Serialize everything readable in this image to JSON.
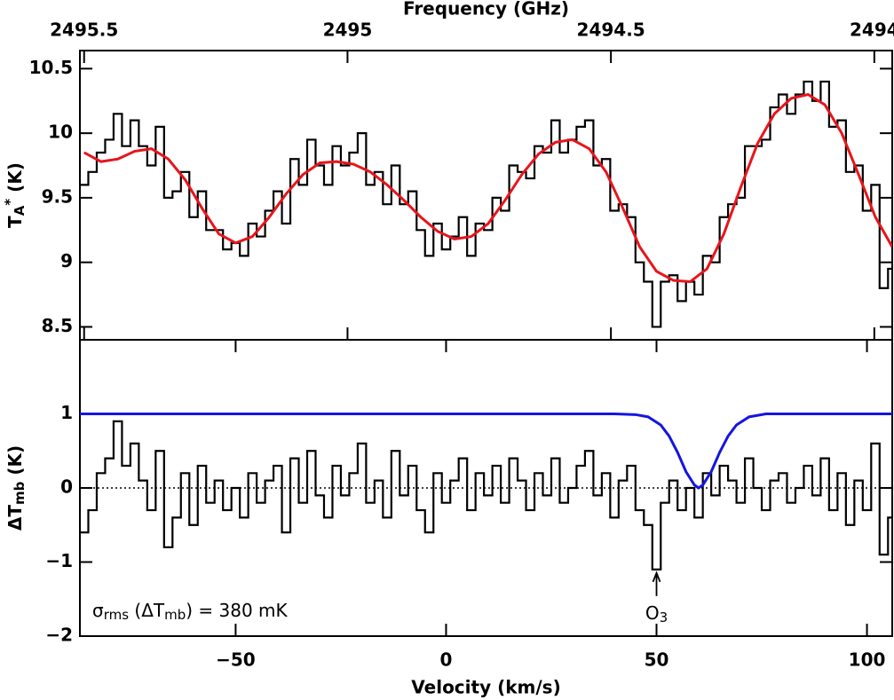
{
  "chart_data": [
    {
      "type": "step",
      "x2label": "Frequency (GHz)",
      "x2lim": [
        2495.508,
        2493.966
      ],
      "x2ticks": [
        2495.5,
        2495,
        2494.5,
        2494
      ],
      "ylabel_parts": [
        {
          "text": "T"
        },
        {
          "text": "A",
          "sub": true
        },
        {
          "text": "*",
          "sup": true
        },
        {
          "text": " (K)"
        }
      ],
      "xlim": [
        -87,
        106
      ],
      "ylim": [
        8.4,
        10.64
      ],
      "yticks": [
        8.5,
        9,
        9.5,
        10,
        10.5
      ],
      "x": [
        -86,
        -84,
        -82,
        -80,
        -78,
        -76,
        -74,
        -72,
        -70,
        -68,
        -66,
        -64,
        -62,
        -60,
        -58,
        -56,
        -54,
        -52,
        -50,
        -48,
        -46,
        -44,
        -42,
        -40,
        -38,
        -36,
        -34,
        -32,
        -30,
        -28,
        -26,
        -24,
        -22,
        -20,
        -18,
        -16,
        -14,
        -12,
        -10,
        -8,
        -6,
        -4,
        -2,
        0,
        2,
        4,
        6,
        8,
        10,
        12,
        14,
        16,
        18,
        20,
        22,
        24,
        26,
        28,
        30,
        32,
        34,
        36,
        38,
        40,
        42,
        44,
        46,
        48,
        50,
        52,
        54,
        56,
        58,
        60,
        62,
        64,
        66,
        68,
        70,
        72,
        74,
        76,
        78,
        80,
        82,
        84,
        86,
        88,
        90,
        92,
        94,
        96,
        98,
        100,
        102,
        104,
        106
      ],
      "series": [
        {
          "color": "#000000",
          "style": "step",
          "values": [
            9.6,
            9.7,
            9.85,
            9.95,
            10.15,
            9.9,
            10.1,
            9.9,
            9.75,
            10.05,
            9.5,
            9.55,
            9.7,
            9.35,
            9.55,
            9.25,
            9.25,
            9.1,
            9.15,
            9.05,
            9.3,
            9.2,
            9.4,
            9.55,
            9.3,
            9.8,
            9.6,
            9.95,
            9.75,
            9.6,
            9.9,
            9.75,
            9.85,
            10.0,
            9.6,
            9.7,
            9.45,
            9.75,
            9.45,
            9.55,
            9.25,
            9.05,
            9.3,
            9.1,
            9.2,
            9.35,
            9.05,
            9.3,
            9.25,
            9.5,
            9.4,
            9.75,
            9.7,
            9.65,
            9.9,
            9.85,
            10.1,
            9.85,
            9.95,
            10.05,
            10.1,
            9.75,
            9.8,
            9.4,
            9.45,
            9.35,
            9.0,
            8.85,
            8.5,
            8.85,
            8.9,
            8.7,
            8.85,
            8.75,
            9.05,
            9.0,
            9.35,
            9.45,
            9.5,
            9.9,
            9.9,
            9.95,
            10.2,
            10.3,
            10.15,
            10.3,
            10.4,
            10.25,
            10.4,
            10.05,
            10.1,
            9.7,
            9.75,
            9.4,
            9.6,
            8.8,
            8.95
          ]
        },
        {
          "color": "#e8141b",
          "style": "line",
          "x": [
            -86,
            -82,
            -78,
            -74,
            -70,
            -66,
            -62,
            -58,
            -54,
            -50,
            -46,
            -42,
            -38,
            -34,
            -30,
            -26,
            -22,
            -18,
            -14,
            -10,
            -6,
            -2,
            2,
            6,
            10,
            14,
            18,
            22,
            26,
            30,
            34,
            38,
            42,
            46,
            50,
            54,
            58,
            62,
            66,
            70,
            74,
            78,
            82,
            86,
            90,
            94,
            98,
            102,
            106
          ],
          "values": [
            9.85,
            9.78,
            9.8,
            9.86,
            9.88,
            9.8,
            9.64,
            9.42,
            9.22,
            9.15,
            9.2,
            9.35,
            9.53,
            9.68,
            9.77,
            9.78,
            9.76,
            9.7,
            9.6,
            9.48,
            9.35,
            9.24,
            9.18,
            9.2,
            9.3,
            9.48,
            9.68,
            9.84,
            9.93,
            9.95,
            9.88,
            9.7,
            9.42,
            9.12,
            8.93,
            8.86,
            8.85,
            8.95,
            9.22,
            9.58,
            9.92,
            10.15,
            10.27,
            10.3,
            10.22,
            10.0,
            9.68,
            9.35,
            9.12
          ]
        }
      ]
    },
    {
      "type": "step",
      "xlabel": "Velocity (km/s)",
      "xlim": [
        -87,
        106
      ],
      "xticks": [
        {
          "value": -50,
          "label": "−50"
        },
        0,
        50,
        100
      ],
      "ylabel_parts": [
        {
          "text": "ΔT"
        },
        {
          "text": "mb",
          "sub": true
        },
        {
          "text": " (K)"
        }
      ],
      "ylim": [
        -2,
        2
      ],
      "yticks": [
        {
          "value": -2,
          "label": "−2"
        },
        {
          "value": -1,
          "label": "−1"
        },
        0,
        1
      ],
      "zero_line": true,
      "x": [
        -86,
        -84,
        -82,
        -80,
        -78,
        -76,
        -74,
        -72,
        -70,
        -68,
        -66,
        -64,
        -62,
        -60,
        -58,
        -56,
        -54,
        -52,
        -50,
        -48,
        -46,
        -44,
        -42,
        -40,
        -38,
        -36,
        -34,
        -32,
        -30,
        -28,
        -26,
        -24,
        -22,
        -20,
        -18,
        -16,
        -14,
        -12,
        -10,
        -8,
        -6,
        -4,
        -2,
        0,
        2,
        4,
        6,
        8,
        10,
        12,
        14,
        16,
        18,
        20,
        22,
        24,
        26,
        28,
        30,
        32,
        34,
        36,
        38,
        40,
        42,
        44,
        46,
        48,
        50,
        52,
        54,
        56,
        58,
        60,
        62,
        64,
        66,
        68,
        70,
        72,
        74,
        76,
        78,
        80,
        82,
        84,
        86,
        88,
        90,
        92,
        94,
        96,
        98,
        100,
        102,
        104,
        106
      ],
      "series": [
        {
          "color": "#000000",
          "style": "step",
          "values": [
            -0.6,
            -0.3,
            0.2,
            0.4,
            0.9,
            0.3,
            0.6,
            0.1,
            -0.3,
            0.5,
            -0.8,
            -0.4,
            0.2,
            -0.5,
            0.3,
            -0.2,
            0.1,
            -0.3,
            0.0,
            -0.4,
            0.2,
            -0.2,
            0.1,
            0.3,
            -0.6,
            0.4,
            -0.2,
            0.5,
            -0.1,
            -0.4,
            0.3,
            -0.1,
            0.2,
            0.6,
            -0.2,
            0.1,
            -0.4,
            0.5,
            -0.1,
            0.3,
            -0.3,
            -0.6,
            0.2,
            -0.2,
            0.1,
            0.4,
            -0.3,
            0.2,
            -0.1,
            0.3,
            -0.2,
            0.4,
            0.1,
            -0.3,
            0.2,
            -0.1,
            0.4,
            -0.2,
            0.0,
            0.3,
            0.5,
            -0.1,
            0.2,
            -0.4,
            0.1,
            0.3,
            -0.3,
            -0.5,
            -1.1,
            -0.2,
            0.1,
            -0.3,
            0.0,
            -0.4,
            0.2,
            -0.1,
            0.3,
            0.1,
            -0.2,
            0.4,
            0.0,
            -0.3,
            0.1,
            0.2,
            -0.2,
            0.0,
            0.3,
            -0.1,
            0.4,
            -0.3,
            0.2,
            -0.5,
            0.1,
            -0.3,
            0.6,
            -0.9,
            -0.4
          ]
        },
        {
          "color": "#1515e0",
          "style": "line",
          "x": [
            -87,
            40,
            45,
            48,
            51,
            53,
            55,
            57,
            59,
            60,
            61,
            63,
            65,
            67,
            69,
            72,
            76,
            106
          ],
          "values": [
            1,
            1,
            0.99,
            0.96,
            0.85,
            0.7,
            0.48,
            0.22,
            0.04,
            0.0,
            0.04,
            0.22,
            0.48,
            0.7,
            0.85,
            0.96,
            1,
            1
          ]
        }
      ],
      "annotations": [
        {
          "parts": [
            {
              "text": "σ"
            },
            {
              "text": "rms",
              "sub": true
            },
            {
              "text": " (ΔT"
            },
            {
              "text": "mb",
              "sub": true
            },
            {
              "text": ") = 380 mK"
            }
          ]
        },
        {
          "x": 50,
          "y": -1.1,
          "parts": [
            {
              "text": "O"
            },
            {
              "text": "3",
              "sub": true
            }
          ]
        }
      ]
    }
  ]
}
